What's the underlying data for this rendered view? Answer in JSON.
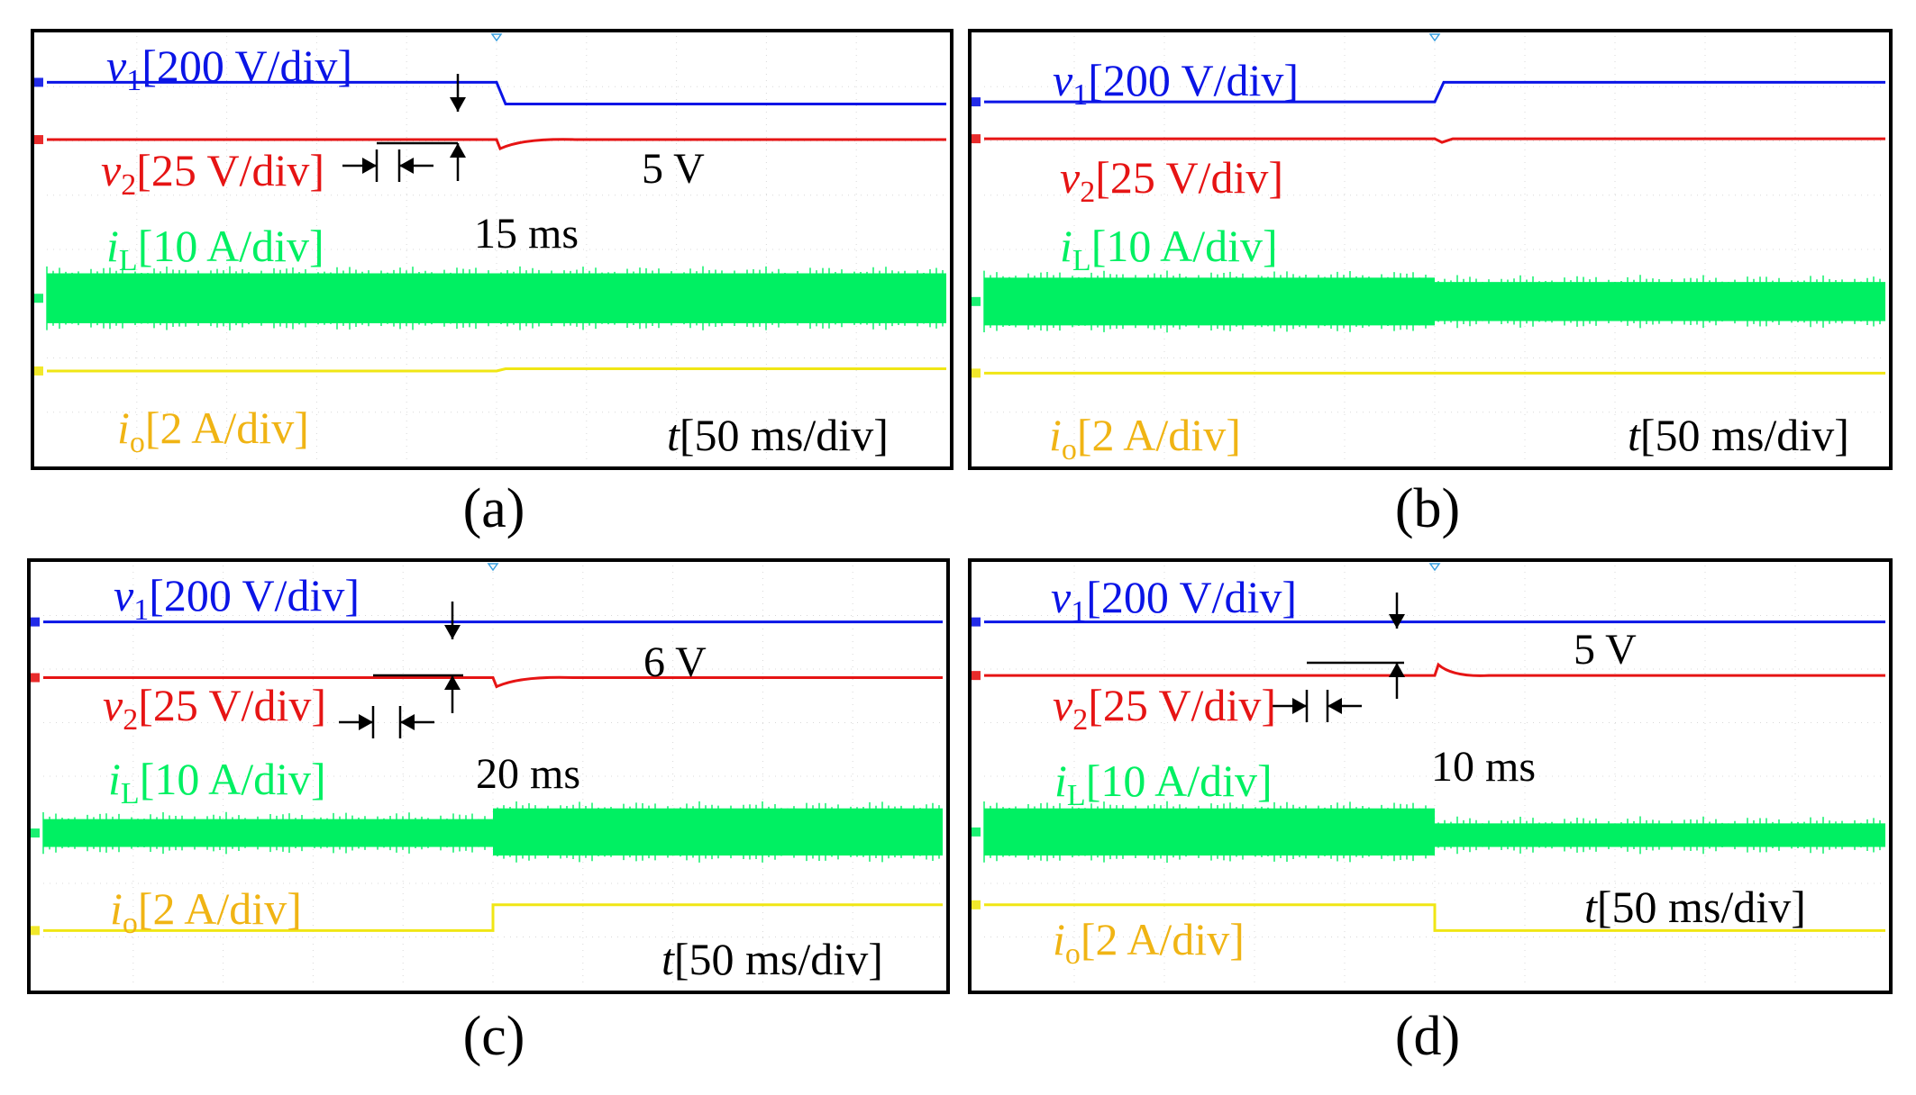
{
  "chart_data": [
    {
      "type": "line",
      "caption": "(a)",
      "time_scale": {
        "var": "t",
        "scale": "[50 ms/div]"
      },
      "step_fraction": 0.5,
      "series": [
        {
          "key": "v1",
          "var": "v",
          "sub": "1",
          "scale": "[200 V/div]",
          "color": "#0a14e6",
          "level_before": 0.115,
          "level_after": 0.165,
          "transient": "step-down-ramp"
        },
        {
          "key": "v2",
          "var": "v",
          "sub": "2",
          "scale": "[25 V/div]",
          "color": "#e61414",
          "level_before": 0.247,
          "level_after": 0.247,
          "transient": "dip-recover"
        },
        {
          "key": "iL",
          "var": "i",
          "sub": "L",
          "scale": "[10 A/div]",
          "color": "#00f062",
          "band_before": [
            0.555,
            0.67
          ],
          "band_after": [
            0.555,
            0.67
          ],
          "transient": "band"
        },
        {
          "key": "io",
          "var": "i",
          "sub": "o",
          "scale": "[2 A/div]",
          "color": "#f0e614",
          "level_before": 0.78,
          "level_after": 0.775,
          "transient": "small-rise"
        }
      ],
      "annotations": {
        "voltage": "5 V",
        "time": "15 ms"
      }
    },
    {
      "type": "line",
      "caption": "(b)",
      "time_scale": {
        "var": "t",
        "scale": "[50 ms/div]"
      },
      "step_fraction": 0.5,
      "series": [
        {
          "key": "v1",
          "var": "v",
          "sub": "1",
          "scale": "[200 V/div]",
          "color": "#0a14e6",
          "level_before": 0.16,
          "level_after": 0.115,
          "transient": "step-up-ramp"
        },
        {
          "key": "v2",
          "var": "v",
          "sub": "2",
          "scale": "[25 V/div]",
          "color": "#e61414",
          "level_before": 0.245,
          "level_after": 0.245,
          "transient": "tiny-bump"
        },
        {
          "key": "iL",
          "var": "i",
          "sub": "L",
          "scale": "[10 A/div]",
          "color": "#00f062",
          "band_before": [
            0.565,
            0.675
          ],
          "band_after": [
            0.575,
            0.665
          ],
          "transient": "band"
        },
        {
          "key": "io",
          "var": "i",
          "sub": "o",
          "scale": "[2 A/div]",
          "color": "#f0e614",
          "level_before": 0.785,
          "level_after": 0.785,
          "transient": "none"
        }
      ],
      "annotations": {}
    },
    {
      "type": "line",
      "caption": "(c)",
      "time_scale": {
        "var": "t",
        "scale": "[50 ms/div]"
      },
      "step_fraction": 0.5,
      "series": [
        {
          "key": "v1",
          "var": "v",
          "sub": "1",
          "scale": "[200 V/div]",
          "color": "#0a14e6",
          "level_before": 0.14,
          "level_after": 0.14,
          "transient": "none"
        },
        {
          "key": "v2",
          "var": "v",
          "sub": "2",
          "scale": "[25 V/div]",
          "color": "#e61414",
          "level_before": 0.27,
          "level_after": 0.27,
          "transient": "dip-recover"
        },
        {
          "key": "iL",
          "var": "i",
          "sub": "L",
          "scale": "[10 A/div]",
          "color": "#00f062",
          "band_before": [
            0.6,
            0.665
          ],
          "band_after": [
            0.575,
            0.685
          ],
          "transient": "band"
        },
        {
          "key": "io",
          "var": "i",
          "sub": "o",
          "scale": "[2 A/div]",
          "color": "#f0e614",
          "level_before": 0.86,
          "level_after": 0.8,
          "transient": "step-up"
        }
      ],
      "annotations": {
        "voltage": "6 V",
        "time": "20 ms"
      }
    },
    {
      "type": "line",
      "caption": "(d)",
      "time_scale": {
        "var": "t",
        "scale": "[50 ms/div]"
      },
      "step_fraction": 0.5,
      "series": [
        {
          "key": "v1",
          "var": "v",
          "sub": "1",
          "scale": "[200 V/div]",
          "color": "#0a14e6",
          "level_before": 0.14,
          "level_after": 0.14,
          "transient": "none"
        },
        {
          "key": "v2",
          "var": "v",
          "sub": "2",
          "scale": "[25 V/div]",
          "color": "#e61414",
          "level_before": 0.265,
          "level_after": 0.265,
          "transient": "spike-recover"
        },
        {
          "key": "iL",
          "var": "i",
          "sub": "L",
          "scale": "[10 A/div]",
          "color": "#00f062",
          "band_before": [
            0.575,
            0.685
          ],
          "band_after": [
            0.61,
            0.665
          ],
          "transient": "band"
        },
        {
          "key": "io",
          "var": "i",
          "sub": "o",
          "scale": "[2 A/div]",
          "color": "#f0e614",
          "level_before": 0.8,
          "level_after": 0.86,
          "transient": "step-down"
        }
      ],
      "annotations": {
        "voltage": "5 V",
        "time": "10 ms"
      }
    }
  ]
}
